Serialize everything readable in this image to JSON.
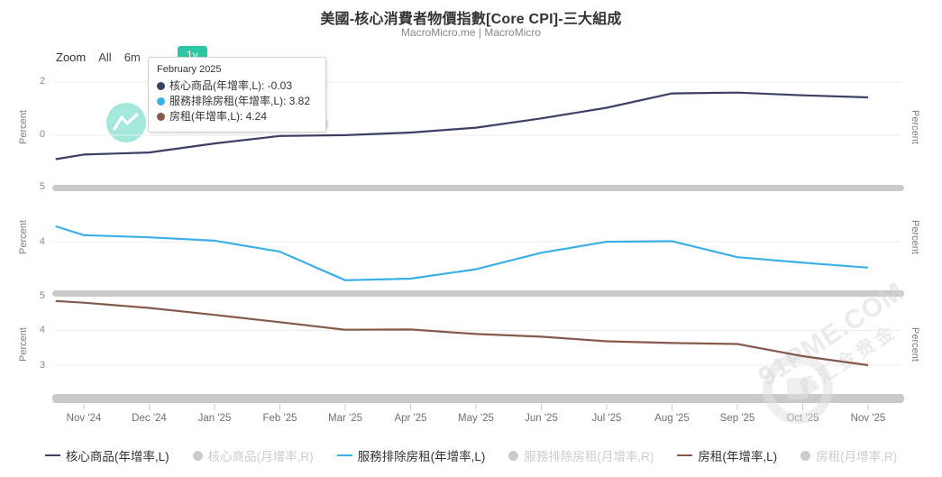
{
  "title": "美國-核心消費者物價指數[Core CPI]-三大組成",
  "subtitle": "MacroMicro.me | MacroMicro",
  "toolbar": {
    "zoom_label": "Zoom",
    "buttons": [
      "All",
      "6m"
    ],
    "selected": "1y"
  },
  "tooltip": {
    "title": "February 2025",
    "rows": [
      {
        "label": "核心商品(年增率,L)",
        "value": "-0.03",
        "color": "#3a4164"
      },
      {
        "label": "服務排除房租(年增率,L)",
        "value": "3.82",
        "color": "#3cb0e6"
      },
      {
        "label": "房租(年增率,L)",
        "value": "4.24",
        "color": "#855a4d"
      }
    ]
  },
  "watermarks": {
    "center_text": "MacroMicro",
    "corner_line1": "91PME.COM",
    "corner_line2": "鑫汇金贵金"
  },
  "legend": [
    {
      "label": "核心商品(年增率,L)",
      "type": "line",
      "color": "#3a4164",
      "active": true
    },
    {
      "label": "核心商品(月增率,R)",
      "type": "dot",
      "color": "#cccccc",
      "active": false
    },
    {
      "label": "服務排除房租(年增率,L)",
      "type": "line",
      "color": "#3cb0e6",
      "active": true
    },
    {
      "label": "服務排除房租(月增率,R)",
      "type": "dot",
      "color": "#cccccc",
      "active": false
    },
    {
      "label": "房租(年增率,L)",
      "type": "line",
      "color": "#855a4d",
      "active": true
    },
    {
      "label": "房租(月增率,R)",
      "type": "dot",
      "color": "#cccccc",
      "active": false
    }
  ],
  "chart_data": {
    "type": "line",
    "title": "美國-核心消費者物價指數[Core CPI]-三大組成",
    "x_categories": [
      "Nov '24",
      "Dec '24",
      "Jan '25",
      "Feb '25",
      "Mar '25",
      "Apr '25",
      "May '25",
      "Jun '25",
      "Jul '25",
      "Aug '25",
      "Sep '25",
      "Oct '25",
      "Nov '25"
    ],
    "x_month_index": [
      -0.43,
      0,
      1,
      2,
      3,
      4,
      5,
      6,
      7,
      8,
      9,
      10,
      11,
      12
    ],
    "grid": true,
    "legend_position": "bottom",
    "panels": [
      {
        "name": "核心商品(年增率,L)",
        "color": "#3a4164",
        "ylabel": "Percent",
        "yticks": [
          0,
          2
        ],
        "ylim": [
          -1.8,
          2.37
        ],
        "values": [
          -0.9,
          -0.73,
          -0.65,
          -0.31,
          -0.03,
          0.0,
          0.1,
          0.28,
          0.63,
          1.03,
          1.57,
          1.6,
          1.5,
          1.42
        ]
      },
      {
        "name": "服務排除房租(年增率,L)",
        "color": "#3cb0e6",
        "ylabel": "Percent",
        "yticks": [
          4,
          5
        ],
        "ylim": [
          3.15,
          5.0
        ],
        "values": [
          4.28,
          4.12,
          4.08,
          4.02,
          3.82,
          3.3,
          3.33,
          3.5,
          3.8,
          4.0,
          4.01,
          3.72,
          3.62,
          3.53
        ]
      },
      {
        "name": "房租(年增率,L)",
        "color": "#855a4d",
        "ylabel": "Percent",
        "yticks": [
          3,
          4,
          5
        ],
        "ylim": [
          2.17,
          5.0
        ],
        "values": [
          4.85,
          4.8,
          4.65,
          4.45,
          4.24,
          4.02,
          4.03,
          3.9,
          3.82,
          3.69,
          3.64,
          3.61,
          3.26,
          3.0
        ]
      }
    ]
  }
}
